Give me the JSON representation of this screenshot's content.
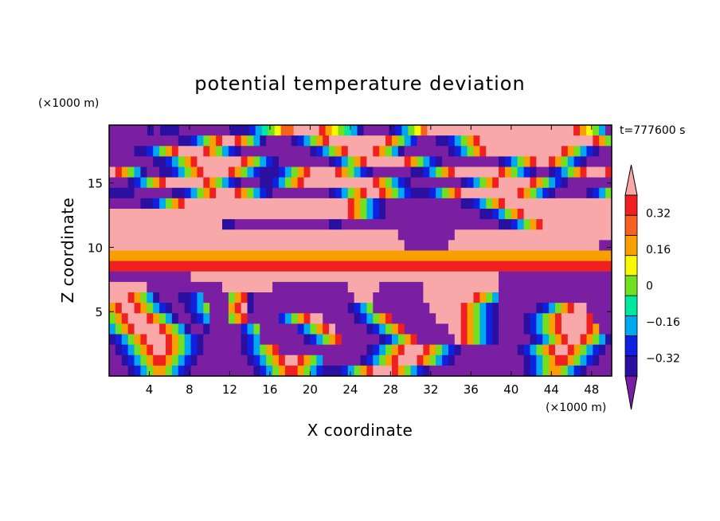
{
  "chart_data": {
    "type": "heatmap",
    "title": "potential temperature deviation",
    "xlabel": "X coordinate",
    "ylabel": "Z coordinate",
    "x_unit": "(×1000 m)",
    "y_unit": "(×1000 m)",
    "time": "t=777600 s",
    "xlim": [
      0,
      50
    ],
    "ylim": [
      0,
      19.5
    ],
    "x_ticks": [
      4,
      8,
      12,
      16,
      20,
      24,
      28,
      32,
      36,
      40,
      44,
      48
    ],
    "y_ticks": [
      5,
      10,
      15
    ],
    "colorbar": {
      "levels": [
        -0.4,
        -0.32,
        -0.24,
        -0.16,
        -0.08,
        0,
        0.08,
        0.16,
        0.24,
        0.32,
        0.4
      ],
      "tick_labels": [
        {
          "value": 0.32,
          "label": "0.32"
        },
        {
          "value": 0.16,
          "label": "0.16"
        },
        {
          "value": 0,
          "label": "0"
        },
        {
          "value": -0.16,
          "label": "−0.16"
        },
        {
          "value": -0.32,
          "label": "−0.32"
        }
      ],
      "colors": [
        "#7a1fa2",
        "#2a0fa0",
        "#1020e0",
        "#00a8f0",
        "#00e8a0",
        "#70e020",
        "#f8f800",
        "#f8a000",
        "#f86020",
        "#f02020",
        "#f8a8a8"
      ]
    },
    "field_rows": [
      "aaaaaababbbaaaaaaaabbbcdefgiikkkkjhgfedbaaaabcdfgikkkkkkkkkkkkkkkkkkkkkkkjhgfda",
      "aaaaaaaaaaabbcdfhjkkjhfdbaaaabcdfhjkkkkkkkkkjhfdcaaabbcdfhjkkkkkkkkkkkkkkkkkkjhf",
      "aaaabbcdfhjkkkkjhfdcbaaaaaaaaaaabcdfhjkkkkjhfdbaaaaaaabcdfhjkkkkkkkkkkkkjhfdcbaa",
      "aaaaaaabbcdfhjkkkkkkkjhfdcbaaaaaaaabcdfhjkkkkkkjhfdcbaaaaaaaaabcdfhjkkjhfdcbaaaa",
      "kjhfdbaabbcdfhjkkkkjhfdcbbbcdfhjkkkkjhfdcbaaaaaabbcdfhjkkkkkkkjhfdcbaabcdfhjkkkj",
      "aaabcdfhjkkkkkkjhfdcbaaabbcdfhjkkkkkkkkkkkjhfdcbaaaaaaaabcdfhjkkkkkjhfdcbaaaaaaa",
      "bbbbaaaaaabbcdfhjkkkjhfdcbaaaaaaaaabcdfhjkkjhfdcbbbcdfhjkkkkkkkkkjhfdcbaaaaabcdf",
      "aaaaabbcdfhjkkkkkkkkkkkkkkkkkkkkkkkkkkjhfdcbaaaaaaaaaaaabbcdfhjkkkkkkkkkkkkkkkkk",
      "kkkkkkkkkkkkkkkkkkkkkkkkkkkkkkkkkkkkkkjhfdcbaaaaaaaaaaaaaaabbcdfhjkkkkkkkkkkkkkk",
      "kkkkkkkkkkkkkkkkkkbbaaaaaaaaaaaaaaabbaaaaaaaaaaaaaaaaaaaaaaaaabbcdfhjkkkkkkkkkkk",
      "kkkkkkkkkkkkkkkkkkkkkkkkkkkkkkkkkkkkkkkkkkkkkkaaaaaaaaakkkkkkkkkkkkkkkkkkkkkkkkk",
      "kkkkkkkkkkkkkkkkkkkkkkkkkkkkkkkkkkkkkkkkkkkkkkkaaaaaaakkkkkkkkkkkkkkkkkkkkkkkkaa",
      "hhhhhhhhhhhhhhhhhhhhhhhhhhhhhhhhhhhhhhhhhhhhhhhhhhhhhhhhhhhhhhhhhhhhhhhhhhhhhhhh",
      "jjjjjjjjjjjjjjjjjjjjjjjjjjjjjjjjjjjjjjjjjjjjjjjjjjjjjjjjjjjjjjjjjjjjjjjjjjjjjjjj",
      "aaaaaaaaaaaaakkkkkkkkkkkkkkkkkkkkkkkkkkkkkkkkkkkkkkkkkkkkkkkkkaaaaaaaaaaaaaaaaaa",
      "kkkkkkaaaaaaaaaaaakkkkkkkkaaaaaaaaaaaakkkkkaaaaaaakkkkkkkkkkkkaaaaaaaaaaaaaaaaaa",
      "kkkjhfdbaaabbcdaaaafhjbaaaaaaaaaaaaaaaakkkaaaaaaaakkkkkkkkjhfdaaaaaaaaaaaaaaaaaa",
      "hjkkjhfdcbaabcdfaaahjkbaaaaaaaaaaaaaaabcdfaaaaaaaaakkkkkjhfdcbaaaaaabcdfhjkkaaaa",
      "fhjkkkjhfdbaabcdaaafhjaaaaacdfhjkkaaaaabcdfhjaaaaaaakkkkjhfdcbaaaabcdfhjkkkkjaaa",
      "dfhjkkkkjhfdbaabaaaaacdfaaaaaacdfhjkaaaaabcdfhjaaaaaaakkjhfdcbaaaabcdfhjkkkkjhaa",
      "bcdfhjkkkjhfdcbaaaaaabcdaaaaaaabcdfhjaaaaaabcdfhjaaaaaakjhfdcbaaaaabcdfhjkkjhfdb",
      "abcdfhjkkjhfdcbaaaaaabcdfhjaaaaaaaaaaaaaabcdfhjkkkjhfdcbaaaaaaaaabcdfhjkkjhfdcba",
      "aabcdfhjjhfdcbaaaaaaaabcdfhjkkjhfdaaaaaabcdfhjkkkjhfdcbaaaaaaaaaaabcdfhjjhfdcbaa",
      "aaabcdfhhfdcbaaaaaaaaaabcdfhjjhfdcbbbcdfhjkkkjhfdcbaaaaaaaaaaaaaaabcdfhhfdcbaaaa"
    ]
  }
}
